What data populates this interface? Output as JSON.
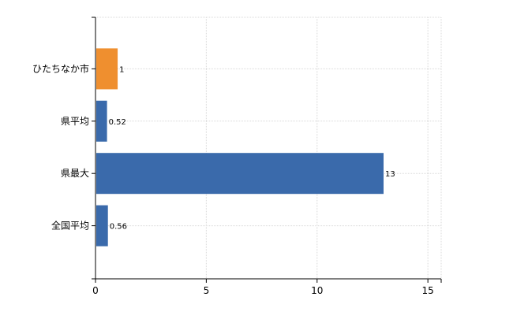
{
  "chart_data": {
    "type": "bar",
    "orientation": "horizontal",
    "categories": [
      "ひたちなか市",
      "県平均",
      "県最大",
      "全国平均"
    ],
    "values": [
      1,
      0.52,
      13,
      0.56
    ],
    "data_labels": [
      "1",
      "0.52",
      "13",
      "0.56"
    ],
    "bar_colors": [
      "#ef8f2f",
      "#3a6aab",
      "#3a6aab",
      "#3a6aab"
    ],
    "title": "",
    "xlabel": "",
    "ylabel": "",
    "xlim": [
      0,
      15.6
    ],
    "x_ticks": [
      0,
      5,
      10,
      15
    ],
    "x_tick_labels": [
      "0",
      "5",
      "10",
      "15"
    ],
    "grid": true,
    "legend": "none"
  },
  "colors": {
    "highlight": "#ef8f2f",
    "default_bar": "#3a6aab",
    "grid": "#d9d9d9",
    "axis": "#000000"
  }
}
